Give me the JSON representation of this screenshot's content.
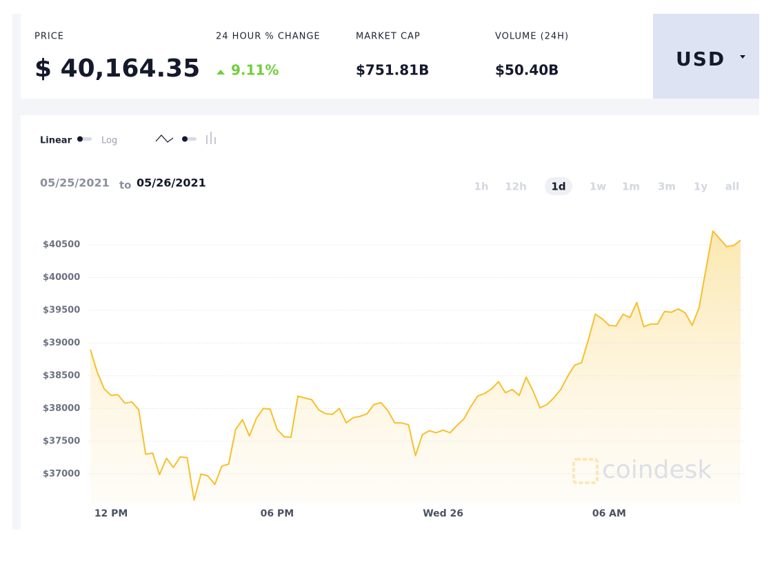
{
  "header": {
    "price_label": "PRICE",
    "price": "$ 40,164.35",
    "change_label": "24 HOUR % CHANGE",
    "change": "9.11%",
    "market_cap_label": "MARKET CAP",
    "market_cap": "$751.81B",
    "volume_label": "VOLUME (24H)",
    "volume": "$50.40B",
    "currency": "USD"
  },
  "controls": {
    "linear": "Linear",
    "log": "Log",
    "date_from": "05/25/2021",
    "date_to_word": "to",
    "date_to": "05/26/2021",
    "timeframes": [
      "1h",
      "12h",
      "1d",
      "1w",
      "1m",
      "3m",
      "1y",
      "all"
    ],
    "selected_timeframe": "1d",
    "watermark": "coindesk"
  },
  "chart_data": {
    "type": "area",
    "color": "#f5c02a",
    "grid": true,
    "xlim": [
      0,
      94
    ],
    "xticks": [
      {
        "value": 3,
        "label": "12 PM"
      },
      {
        "value": 27,
        "label": "06 PM"
      },
      {
        "value": 51,
        "label": "Wed 26"
      },
      {
        "value": 75,
        "label": "06 AM"
      }
    ],
    "ylim": [
      36550,
      40900
    ],
    "yticks": [
      {
        "value": 37000,
        "label": "$37000"
      },
      {
        "value": 37500,
        "label": "$37500"
      },
      {
        "value": 38000,
        "label": "$38000"
      },
      {
        "value": 38500,
        "label": "$38500"
      },
      {
        "value": 39000,
        "label": "$39000"
      },
      {
        "value": 39500,
        "label": "$39500"
      },
      {
        "value": 40000,
        "label": "$40000"
      },
      {
        "value": 40500,
        "label": "$40500"
      }
    ],
    "values": [
      38900,
      38555,
      38300,
      38200,
      38210,
      38080,
      38100,
      37980,
      37300,
      37320,
      36990,
      37240,
      37100,
      37260,
      37250,
      36600,
      37000,
      36970,
      36840,
      37120,
      37150,
      37680,
      37830,
      37580,
      37850,
      38000,
      37990,
      37680,
      37570,
      37560,
      38190,
      38160,
      38135,
      37980,
      37920,
      37910,
      38000,
      37780,
      37860,
      37880,
      37920,
      38060,
      38090,
      37970,
      37780,
      37780,
      37750,
      37280,
      37600,
      37660,
      37630,
      37670,
      37630,
      37740,
      37840,
      38030,
      38190,
      38230,
      38300,
      38410,
      38240,
      38290,
      38200,
      38480,
      38270,
      38010,
      38060,
      38160,
      38290,
      38490,
      38660,
      38700,
      39050,
      39440,
      39370,
      39270,
      39260,
      39440,
      39390,
      39620,
      39250,
      39290,
      39290,
      39480,
      39470,
      39520,
      39460,
      39270,
      39540,
      40130,
      40710,
      40590,
      40470,
      40490,
      40570
    ]
  }
}
